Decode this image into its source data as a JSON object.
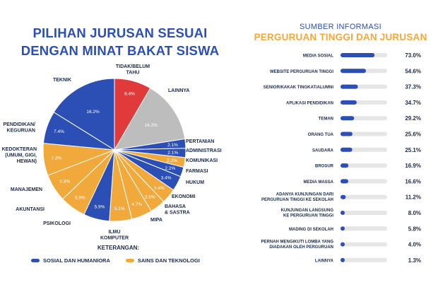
{
  "left": {
    "title_line1": "PILIHAN JURUSAN SESUAI",
    "title_line2": "DENGAN MINAT BAKAT SISWA",
    "legend_heading": "KETERANGAN:",
    "legend": [
      {
        "label": "SOSIAL DAN HUMANIORA",
        "color": "#2B4FB4"
      },
      {
        "label": "SAINS DAN TEKNOLOGI",
        "color": "#F2A93B"
      }
    ]
  },
  "right": {
    "subtitle": "SUMBER INFORMASI",
    "title": "PERGURUAN TINGGI DAN JURUSAN"
  },
  "chart_data": [
    {
      "type": "pie",
      "title": "PILIHAN JURUSAN SESUAI DENGAN MINAT BAKAT SISWA",
      "slices": [
        {
          "label": "TIDAK/BELUM TAHU",
          "value": 8.4,
          "value_label": "8.4%",
          "color": "#E03A3A"
        },
        {
          "label": "LAINNYA",
          "value": 14.2,
          "value_label": "14.2%",
          "color": "#BDBDBD"
        },
        {
          "label": "PERTANIAN",
          "value": 2.1,
          "value_label": "2.1%",
          "color": "#2B4FB4"
        },
        {
          "label": "ADMINISTRASI",
          "value": 2.1,
          "value_label": "2.1%",
          "color": "#2B4FB4"
        },
        {
          "label": "KOMUNIKASI",
          "value": 2.2,
          "value_label": "2.2%",
          "color": "#F2A93B"
        },
        {
          "label": "FARMASI",
          "value": 2.2,
          "value_label": "2.2%",
          "color": "#2B4FB4"
        },
        {
          "label": "HUKUM",
          "value": 3.4,
          "value_label": "3.4%",
          "color": "#2B4FB4"
        },
        {
          "label": "EKONOMI",
          "value": 3.4,
          "value_label": "3.4%",
          "color": "#F2A93B"
        },
        {
          "label": "BAHASA & SASTRA",
          "value": 3.5,
          "value_label": "3.5%",
          "color": "#F2A93B"
        },
        {
          "label": "MIPA",
          "value": 4.7,
          "value_label": "4.7%",
          "color": "#F2A93B"
        },
        {
          "label": "ILMU KOMPUTER",
          "value": 5.1,
          "value_label": "5.1%",
          "color": "#F2A93B"
        },
        {
          "label": "PSIKOLOGI",
          "value": 5.9,
          "value_label": "5.9%",
          "color": "#2B4FB4"
        },
        {
          "label": "AKUNTANSI",
          "value": 5.9,
          "value_label": "5.9%",
          "color": "#F2A93B"
        },
        {
          "label": "MANAJEMEN",
          "value": 6.3,
          "value_label": "6.3%",
          "color": "#F2A93B"
        },
        {
          "label": "KEDOKTERAN (UMUM, GIGI, HEWAN)",
          "value": 7.3,
          "value_label": "7.3%",
          "color": "#F2A93B"
        },
        {
          "label": "PENDIDIKAN/ KEGURUAN",
          "value": 7.4,
          "value_label": "7.4%",
          "color": "#2B4FB4"
        },
        {
          "label": "TEKNIK",
          "value": 16.2,
          "value_label": "16.2%",
          "color": "#2B4FB4"
        }
      ]
    },
    {
      "type": "bar",
      "orientation": "horizontal",
      "title": "SUMBER INFORMASI PERGURUAN TINGGI DAN JURUSAN",
      "xlim": [
        0,
        100
      ],
      "bar_color": "#2B4FB4",
      "track_color": "#E6E6E6",
      "categories": [
        "MEDIA SOSIAL",
        "WEBSITE PERGURUAN TINGGI",
        "SENIOR/KAKAK TINGKAT/ALUMNI",
        "APLIKASI PENDIDIKAN",
        "TEMAN",
        "ORANG TUA",
        "SAUDARA",
        "BROSUR",
        "MEDIA MASSA",
        "ADANYA KUNJUNGAN DARI PERGURUAN TINGGI KE SEKOLAH",
        "KUNJUNGAN LANGSUNG KE PERGURUAN TINGGI",
        "MADING DI SEKOLAH",
        "PERNAH MENGIKUTI LOMBA YANG DIADAKAN OLEH PERGURUAN",
        "LAINNYA"
      ],
      "values": [
        73.0,
        54.6,
        37.3,
        34.7,
        29.2,
        25.6,
        25.1,
        16.9,
        16.6,
        11.2,
        8.0,
        5.8,
        4.0,
        1.3
      ],
      "value_labels": [
        "73.0%",
        "54.6%",
        "37.3%",
        "34.7%",
        "29.2%",
        "25.6%",
        "25.1%",
        "16.9%",
        "16.6%",
        "11.2%",
        "8.0%",
        "5.8%",
        "4.0%",
        "1.3%"
      ]
    }
  ]
}
